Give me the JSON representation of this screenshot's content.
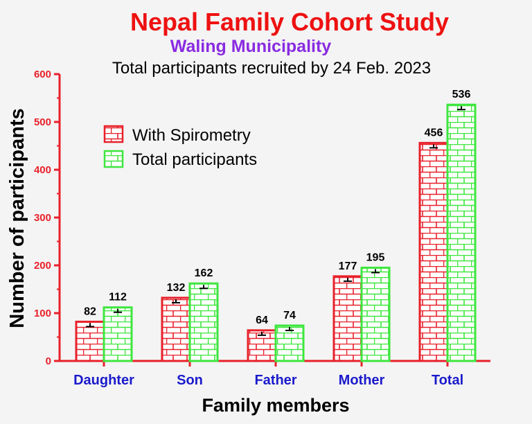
{
  "chart_data": {
    "type": "bar",
    "title": "Nepal Family Cohort Study",
    "subtitle": "Waling Municipality",
    "caption": "Total participants recruited by 24 Feb. 2023",
    "xlabel": "Family members",
    "ylabel": "Number of participants",
    "categories": [
      "Daughter",
      "Son",
      "Father",
      "Mother",
      "Total"
    ],
    "series": [
      {
        "name": "With Spirometry",
        "values": [
          82,
          132,
          64,
          177,
          456
        ],
        "color": "#e8202a"
      },
      {
        "name": "Total participants",
        "values": [
          112,
          162,
          74,
          195,
          536
        ],
        "color": "#3ee63e"
      }
    ],
    "ylim": [
      0,
      600
    ],
    "yticks": [
      0,
      100,
      200,
      300,
      400,
      500,
      600
    ],
    "legend_position": "upper-left",
    "grid": false,
    "pattern": "brick",
    "colors": {
      "title": "#ee1111",
      "subtitle": "#8a2be2",
      "axis": "#e8202a",
      "category_label": "#1a1acc",
      "text": "#000000",
      "background": "#f4f4f4"
    }
  }
}
